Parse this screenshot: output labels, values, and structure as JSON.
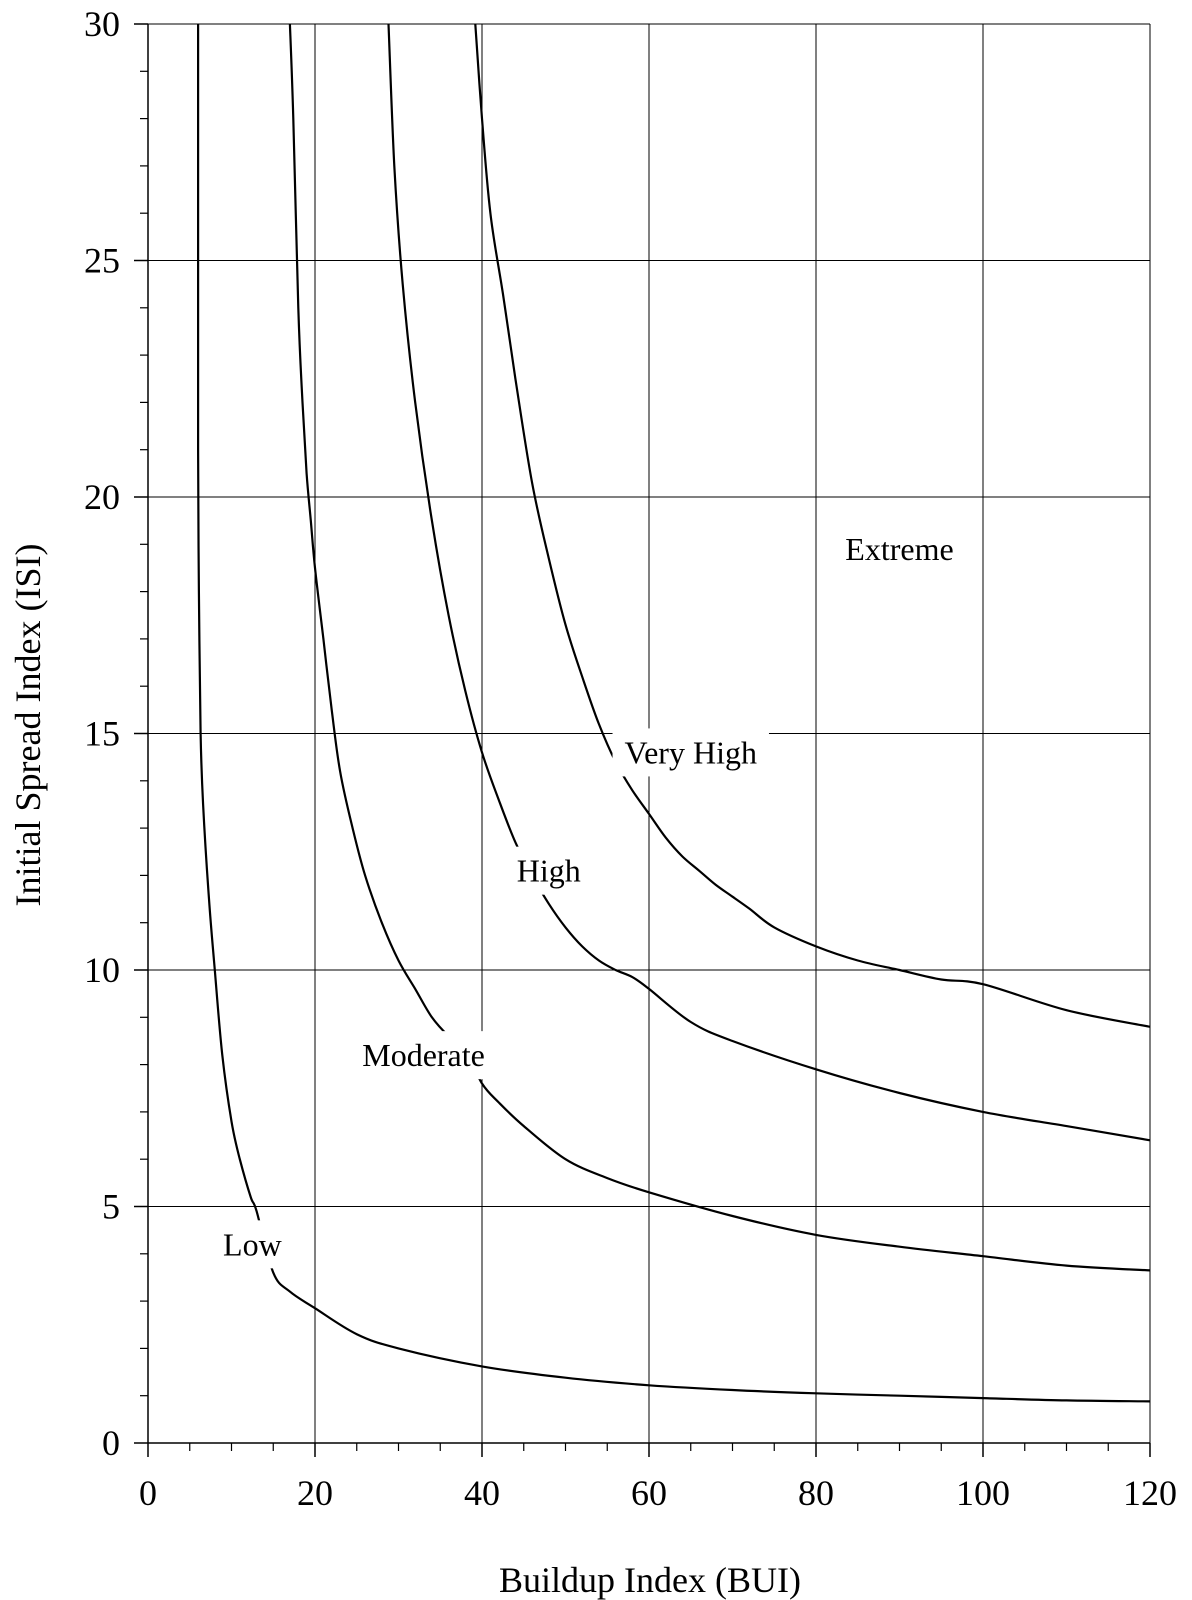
{
  "chart_data": {
    "type": "line",
    "title": "",
    "xlabel": "Buildup Index (BUI)",
    "ylabel": "Initial Spread Index (ISI)",
    "xlim": [
      0,
      120
    ],
    "ylim": [
      0,
      30
    ],
    "x_ticks": [
      0,
      20,
      40,
      60,
      80,
      100,
      120
    ],
    "y_ticks": [
      0,
      5,
      10,
      15,
      20,
      25,
      30
    ],
    "x_minor_step": 5,
    "y_minor_step": 1,
    "grid": true,
    "colors": {
      "line": "#000000",
      "grid": "#000000",
      "background": "#ffffff"
    },
    "series": [
      {
        "x": [
          6.0,
          6.0,
          6.0,
          6.1,
          6.3,
          6.6,
          7.3,
          8.0,
          8.9,
          10.0,
          11.0,
          12.3,
          13.0,
          15,
          17,
          20,
          25,
          30,
          40,
          50,
          60,
          70,
          80,
          90,
          100,
          110,
          120
        ],
        "y": [
          30,
          25,
          21,
          18,
          15,
          13.5,
          11.5,
          10.0,
          8.2,
          6.8,
          6.0,
          5.2,
          4.9,
          3.6,
          3.2,
          2.85,
          2.3,
          2.0,
          1.62,
          1.38,
          1.22,
          1.12,
          1.05,
          1.0,
          0.95,
          0.9,
          0.88
        ]
      },
      {
        "x": [
          17,
          17.4,
          18,
          18.5,
          19,
          19.5,
          20,
          21,
          22,
          23,
          24.5,
          26,
          28,
          30,
          32,
          34,
          36,
          38,
          40,
          42,
          45,
          50,
          55,
          60,
          70,
          80,
          90,
          100,
          110,
          120
        ],
        "y": [
          30,
          28,
          24,
          22,
          20.5,
          19.5,
          18.5,
          17.0,
          15.5,
          14.2,
          13.0,
          12.0,
          11.0,
          10.2,
          9.6,
          9.0,
          8.6,
          8.3,
          7.6,
          7.2,
          6.7,
          6.0,
          5.6,
          5.3,
          4.8,
          4.4,
          4.15,
          3.95,
          3.75,
          3.65
        ]
      },
      {
        "x": [
          28.8,
          29.5,
          30.5,
          32,
          34,
          36,
          38,
          40,
          42,
          44,
          46,
          48,
          50,
          52,
          54,
          56,
          58,
          60,
          65,
          70,
          80,
          90,
          100,
          110,
          120
        ],
        "y": [
          30,
          27,
          24.5,
          22,
          19.5,
          17.5,
          15.9,
          14.6,
          13.6,
          12.7,
          12.0,
          11.4,
          10.9,
          10.5,
          10.2,
          10.0,
          9.85,
          9.6,
          8.9,
          8.5,
          7.9,
          7.4,
          7.0,
          6.7,
          6.4
        ]
      },
      {
        "x": [
          39.2,
          40,
          41,
          42.5,
          44,
          46,
          48,
          50,
          52,
          54,
          56,
          58,
          60,
          62,
          64,
          66,
          68,
          70,
          72,
          75,
          80,
          85,
          90,
          95,
          100,
          110,
          120
        ],
        "y": [
          30,
          28,
          26,
          24.3,
          22.5,
          20.3,
          18.7,
          17.3,
          16.2,
          15.2,
          14.4,
          13.8,
          13.3,
          12.8,
          12.4,
          12.1,
          11.8,
          11.55,
          11.3,
          10.9,
          10.5,
          10.2,
          10.0,
          9.8,
          9.7,
          9.15,
          8.8
        ]
      }
    ],
    "annotations": [
      {
        "text": "Low",
        "x": 12.5,
        "y": 4.2
      },
      {
        "text": "Moderate",
        "x": 33,
        "y": 8.2
      },
      {
        "text": "High",
        "x": 48,
        "y": 12.1
      },
      {
        "text": "Very High",
        "x": 65,
        "y": 14.6
      },
      {
        "text": "Extreme",
        "x": 90,
        "y": 18.9
      }
    ]
  }
}
